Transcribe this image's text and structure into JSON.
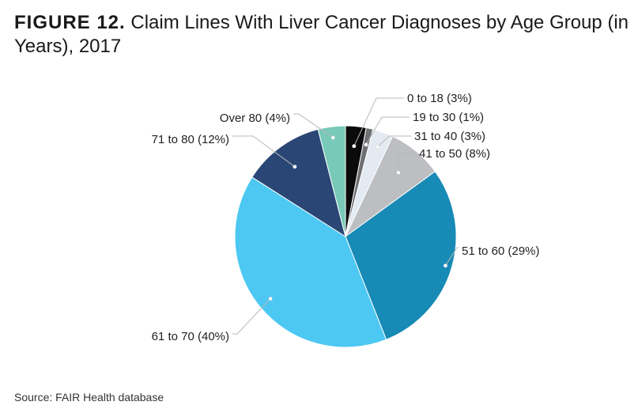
{
  "title": {
    "prefix": "FIGURE 12.",
    "text": "Claim Lines With Liver Cancer Diagnoses by Age Group (in Years), 2017"
  },
  "source": "Source: FAIR Health database",
  "chart_data": {
    "type": "pie",
    "title": "Claim Lines With Liver Cancer Diagnoses by Age Group (in Years), 2017",
    "start": "top, clockwise",
    "slices": [
      {
        "label": "0 to 18 (3%)",
        "category": "0 to 18",
        "value": 3,
        "color": "#0b0b0b"
      },
      {
        "label": "19 to 30 (1%)",
        "category": "19 to 30",
        "value": 1,
        "color": "#6d6f73"
      },
      {
        "label": "31 to 40 (3%)",
        "category": "31 to 40",
        "value": 3,
        "color": "#e3eaf1"
      },
      {
        "label": "41 to 50 (8%)",
        "category": "41 to 50",
        "value": 8,
        "color": "#bcbec1"
      },
      {
        "label": "51 to 60 (29%)",
        "category": "51 to 60",
        "value": 29,
        "color": "#178ab5"
      },
      {
        "label": "61 to 70 (40%)",
        "category": "61 to 70",
        "value": 40,
        "color": "#4cc8f2"
      },
      {
        "label": "71 to 80 (12%)",
        "category": "71 to 80",
        "value": 12,
        "color": "#2a4675"
      },
      {
        "label": "Over 80 (4%)",
        "category": "Over 80",
        "value": 4,
        "color": "#78c9b8"
      }
    ]
  }
}
